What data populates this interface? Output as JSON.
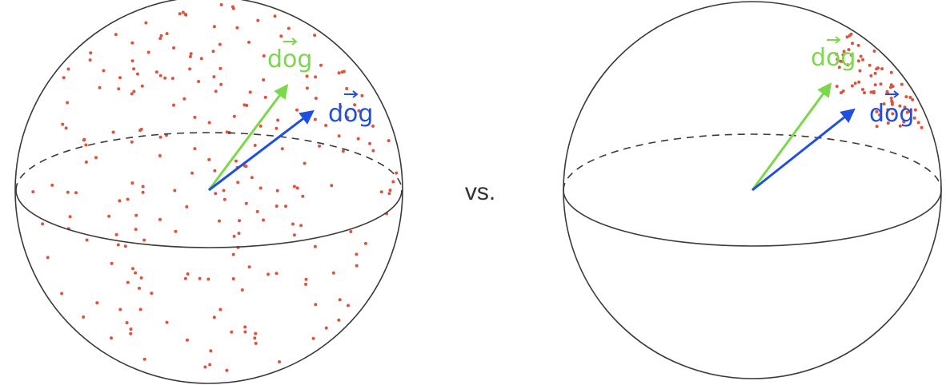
{
  "separator_text": "vs.",
  "left_sphere": {
    "vectors": [
      {
        "label": "dog",
        "color": "#7ad84a"
      },
      {
        "label": "dog",
        "color": "#1f4fe0"
      }
    ]
  },
  "right_sphere": {
    "vectors": [
      {
        "label": "dog",
        "color": "#7ad84a"
      },
      {
        "label": "dog",
        "color": "#1f4fe0"
      }
    ]
  },
  "colors": {
    "points": "#e0523a",
    "outline": "#3a3a3a"
  }
}
